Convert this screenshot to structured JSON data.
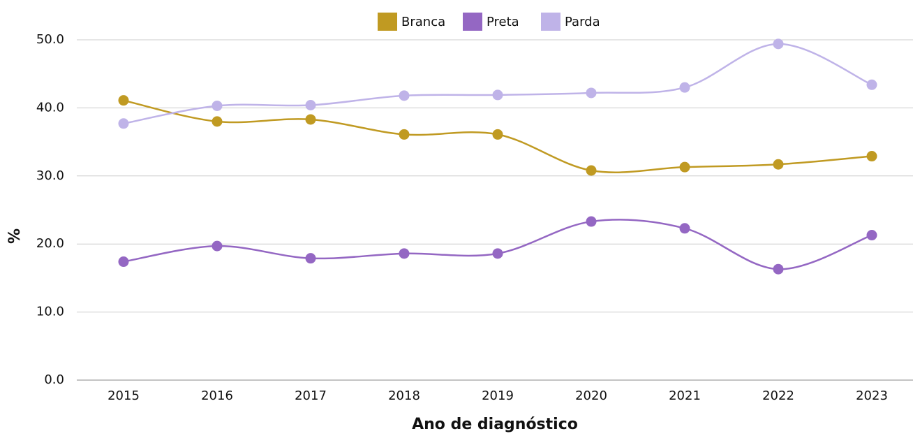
{
  "chart_data": {
    "type": "line",
    "categories": [
      "2015",
      "2016",
      "2017",
      "2018",
      "2019",
      "2020",
      "2021",
      "2022",
      "2023"
    ],
    "series": [
      {
        "name": "Branca",
        "color": "#c09a22",
        "values": [
          41.1,
          38.0,
          38.3,
          36.1,
          36.1,
          30.8,
          31.3,
          31.7,
          32.9
        ]
      },
      {
        "name": "Preta",
        "color": "#9467c3",
        "values": [
          17.4,
          19.7,
          17.9,
          18.6,
          18.6,
          23.3,
          22.3,
          16.3,
          21.3
        ]
      },
      {
        "name": "Parda",
        "color": "#bfb3e8",
        "values": [
          37.7,
          40.3,
          40.4,
          41.8,
          41.9,
          42.2,
          43.0,
          49.4,
          43.4
        ]
      }
    ],
    "xlabel": "Ano de diagnóstico",
    "ylabel": "%",
    "ylim": [
      0,
      50
    ],
    "yticks": [
      {
        "value": 0,
        "label": "0.0"
      },
      {
        "value": 10,
        "label": "10.0"
      },
      {
        "value": 20,
        "label": "20.0"
      },
      {
        "value": 30,
        "label": "30.0"
      },
      {
        "value": 40,
        "label": "40.0"
      },
      {
        "value": 50,
        "label": "50.0"
      }
    ],
    "grid": true,
    "legend": "top"
  }
}
